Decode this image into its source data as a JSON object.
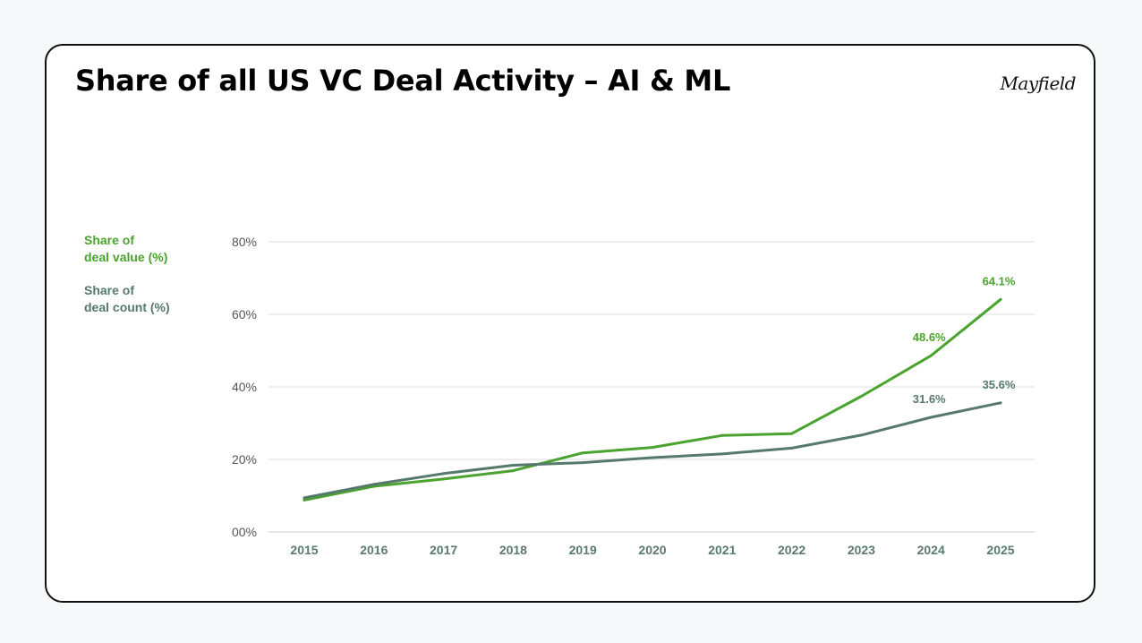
{
  "slide": {
    "title": "Share of all US VC Deal Activity – AI & ML",
    "logo_text": "Mayfield"
  },
  "colors": {
    "value_series": "#4aa32e",
    "count_series": "#557a6b",
    "gridline": "#dddddd",
    "x_tick": "#5a7a6c",
    "y_tick": "#555555"
  },
  "legend": [
    {
      "line1": "Share of",
      "line2": "deal value (%)",
      "color": "#4aa32e"
    },
    {
      "line1": "Share of",
      "line2": "deal count (%)",
      "color": "#557a6b"
    }
  ],
  "chart_data": {
    "type": "line",
    "title": "Share of all US VC Deal Activity – AI & ML",
    "x": [
      "2015",
      "2016",
      "2017",
      "2018",
      "2019",
      "2020",
      "2021",
      "2022",
      "2023",
      "2024",
      "2025"
    ],
    "ylim": [
      0,
      80
    ],
    "yticks": [
      0,
      20,
      40,
      60,
      80
    ],
    "ytick_labels": [
      "00%",
      "20%",
      "40%",
      "60%",
      "80%"
    ],
    "grid": true,
    "legend_position": "left",
    "series": [
      {
        "name": "Share of deal value (%)",
        "color": "#4aa32e",
        "values": [
          8.8,
          12.6,
          14.6,
          16.9,
          21.8,
          23.3,
          26.6,
          27.1,
          37.4,
          48.6,
          64.1
        ],
        "labels": {
          "9": "48.6%",
          "10": "64.1%"
        }
      },
      {
        "name": "Share of deal count (%)",
        "color": "#557a6b",
        "values": [
          9.4,
          13.1,
          16.1,
          18.4,
          19.1,
          20.5,
          21.5,
          23.1,
          26.7,
          31.6,
          35.6
        ],
        "labels": {
          "9": "31.6%",
          "10": "35.6%"
        }
      }
    ]
  }
}
